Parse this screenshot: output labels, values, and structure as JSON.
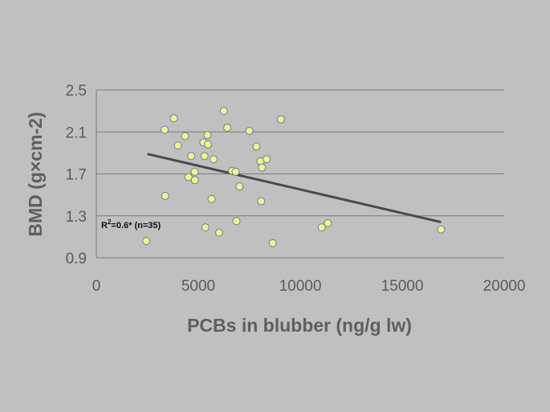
{
  "chart_data": {
    "type": "scatter",
    "xlabel": "PCBs in blubber (ng/g lw)",
    "ylabel": "BMD (g×cm-2)",
    "xlim": [
      0,
      20000
    ],
    "ylim": [
      0.9,
      2.5
    ],
    "xticks": [
      "0",
      "5000",
      "10000",
      "15000",
      "20000"
    ],
    "yticks": [
      "0.9",
      "1.3",
      "1.7",
      "2.1",
      "2.5"
    ],
    "grid": "horizontal",
    "marker_color": "#f2f28a",
    "marker_edge": "#6b7ea3",
    "trend_color": "#4a4a4a",
    "annotation": {
      "r": "R",
      "sup": "2",
      "rest": "=0.6* (n=35)"
    },
    "trendline": {
      "x": [
        2500,
        16900
      ],
      "y": [
        1.89,
        1.24
      ]
    },
    "points": [
      {
        "x": 2450,
        "y": 1.06
      },
      {
        "x": 3350,
        "y": 2.12
      },
      {
        "x": 3380,
        "y": 1.49
      },
      {
        "x": 3800,
        "y": 2.23
      },
      {
        "x": 4000,
        "y": 1.97
      },
      {
        "x": 4350,
        "y": 2.06
      },
      {
        "x": 4520,
        "y": 1.67
      },
      {
        "x": 4650,
        "y": 1.87
      },
      {
        "x": 4820,
        "y": 1.72
      },
      {
        "x": 4830,
        "y": 1.64
      },
      {
        "x": 5250,
        "y": 2.0
      },
      {
        "x": 5300,
        "y": 1.87
      },
      {
        "x": 5350,
        "y": 1.19
      },
      {
        "x": 5450,
        "y": 2.07
      },
      {
        "x": 5470,
        "y": 1.98
      },
      {
        "x": 5650,
        "y": 1.46
      },
      {
        "x": 5750,
        "y": 1.84
      },
      {
        "x": 6020,
        "y": 1.14
      },
      {
        "x": 6250,
        "y": 2.3
      },
      {
        "x": 6420,
        "y": 2.14
      },
      {
        "x": 6650,
        "y": 1.73
      },
      {
        "x": 6830,
        "y": 1.72
      },
      {
        "x": 6870,
        "y": 1.25
      },
      {
        "x": 7020,
        "y": 1.58
      },
      {
        "x": 7500,
        "y": 2.11
      },
      {
        "x": 7850,
        "y": 1.96
      },
      {
        "x": 8050,
        "y": 1.82
      },
      {
        "x": 8080,
        "y": 1.44
      },
      {
        "x": 8120,
        "y": 1.76
      },
      {
        "x": 8350,
        "y": 1.84
      },
      {
        "x": 8650,
        "y": 1.04
      },
      {
        "x": 9050,
        "y": 2.22
      },
      {
        "x": 11050,
        "y": 1.19
      },
      {
        "x": 11350,
        "y": 1.23
      },
      {
        "x": 16900,
        "y": 1.17
      }
    ]
  }
}
